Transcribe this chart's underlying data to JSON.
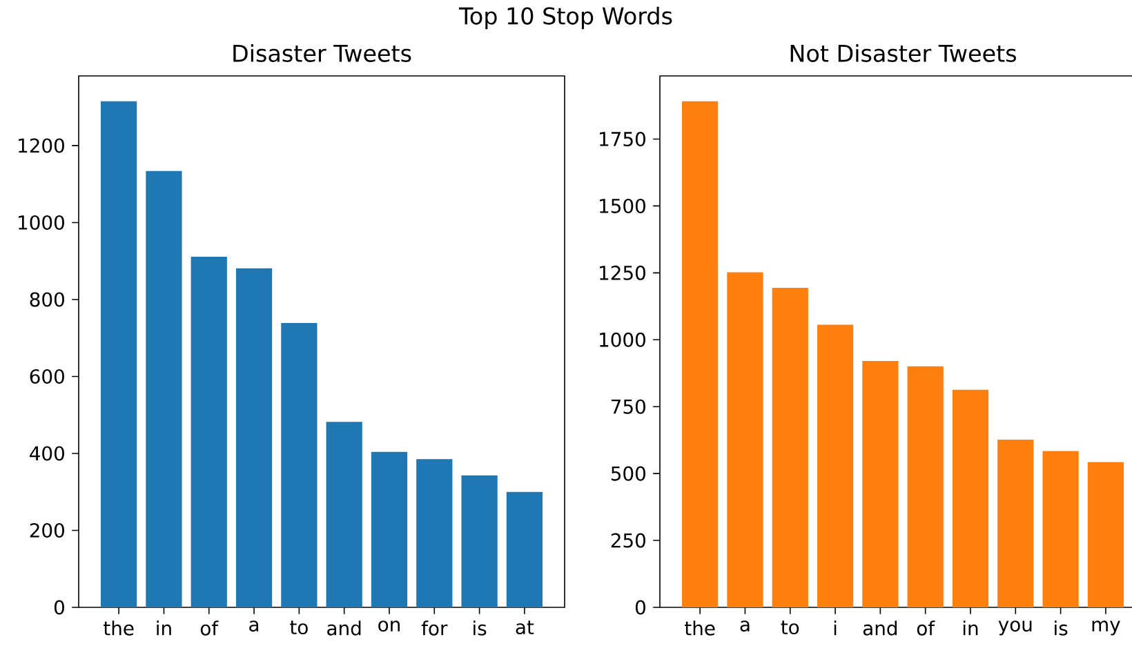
{
  "chart_data": [
    {
      "type": "bar",
      "title": "Disaster Tweets",
      "annotations": [
        "Top 10 Stop Words"
      ],
      "categories": [
        "the",
        "in",
        "of",
        "a",
        "to",
        "and",
        "on",
        "for",
        "is",
        "at"
      ],
      "values": [
        1315,
        1134,
        911,
        881,
        739,
        482,
        404,
        385,
        343,
        300
      ],
      "color": "#1f77b4",
      "ylim": [
        0,
        1381
      ],
      "yticks": [
        0,
        200,
        400,
        600,
        800,
        1000,
        1200
      ]
    },
    {
      "type": "bar",
      "title": "Not Disaster Tweets",
      "categories": [
        "the",
        "a",
        "to",
        "i",
        "and",
        "of",
        "in",
        "you",
        "is",
        "my"
      ],
      "values": [
        1891,
        1252,
        1194,
        1056,
        921,
        901,
        813,
        627,
        584,
        543
      ],
      "color": "#ff7f0e",
      "ylim": [
        0,
        1986
      ],
      "yticks": [
        0,
        250,
        500,
        750,
        1000,
        1250,
        1500,
        1750
      ]
    }
  ]
}
